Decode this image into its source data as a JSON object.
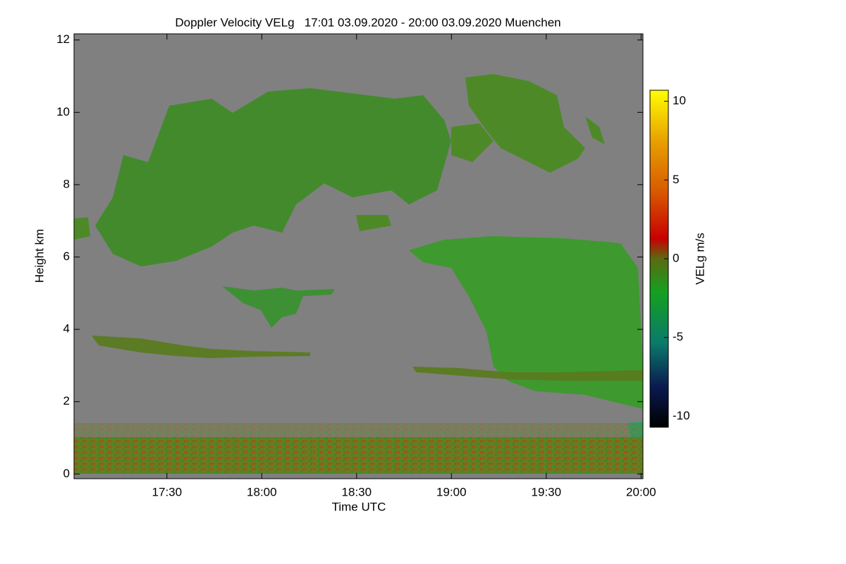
{
  "chart_data": {
    "type": "heatmap",
    "title": "Doppler Velocity VELg   17:01 03.09.2020 - 20:00 03.09.2020 Muenchen",
    "x_label": "Time UTC",
    "y_label": "Height km",
    "xlim": [
      17.01,
      20.01
    ],
    "xticks": [
      {
        "value": 17.5,
        "label": "17:30"
      },
      {
        "value": 18.0,
        "label": "18:00"
      },
      {
        "value": 18.5,
        "label": "18:30"
      },
      {
        "value": 19.0,
        "label": "19:00"
      },
      {
        "value": 19.5,
        "label": "19:30"
      },
      {
        "value": 20.0,
        "label": "20:00"
      }
    ],
    "ylim": [
      -0.13,
      12.17
    ],
    "yticks": [
      0,
      2,
      4,
      6,
      8,
      10,
      12
    ],
    "colorbar_label": "VELg m/s",
    "clim": [
      -10.7,
      10.7
    ],
    "cticks": [
      -10,
      -5,
      0,
      5,
      10
    ]
  }
}
